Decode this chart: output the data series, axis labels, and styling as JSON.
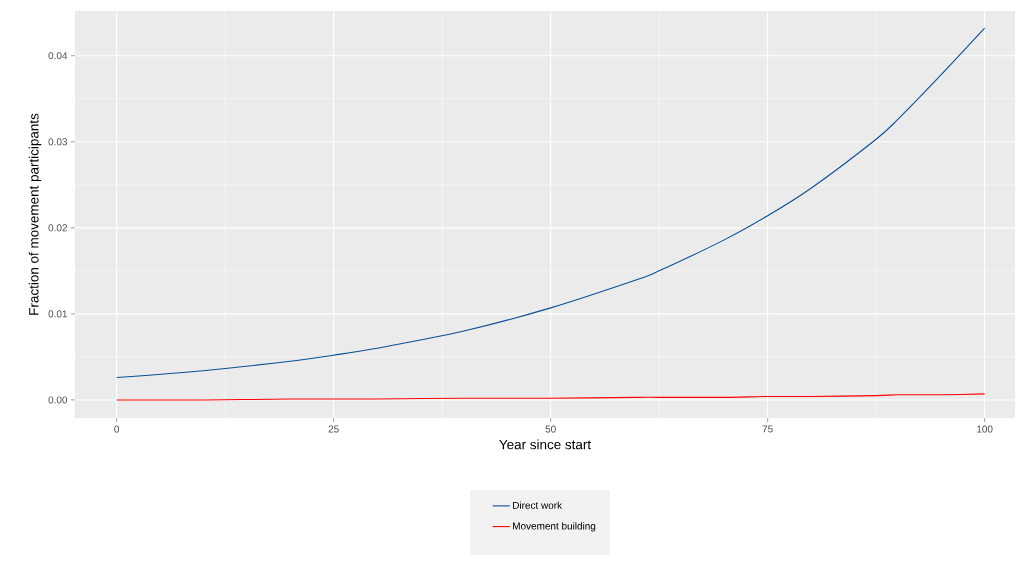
{
  "chart_data": {
    "type": "line",
    "xlabel": "Year since start",
    "ylabel": "Fraction of movement participants",
    "x": [
      0,
      10,
      20,
      25,
      30,
      40,
      50,
      60,
      62.5,
      70,
      75,
      80,
      87.5,
      90,
      95,
      100
    ],
    "series": [
      {
        "name": "Direct work",
        "color": "#0b4f93",
        "values": [
          0.0026,
          0.0034,
          0.0045,
          0.0052,
          0.006,
          0.008,
          0.0107,
          0.014,
          0.015,
          0.0186,
          0.0214,
          0.0246,
          0.0303,
          0.0326,
          0.0378,
          0.0432
        ]
      },
      {
        "name": "Movement building",
        "color": "#ff0000",
        "values": [
          0,
          0,
          0.0001,
          0.0001,
          0.0001,
          0.0002,
          0.0002,
          0.0003,
          0.0003,
          0.0003,
          0.0004,
          0.0004,
          0.0005,
          0.0006,
          0.0006,
          0.0007
        ]
      }
    ],
    "xlim": [
      -4.8,
      103.5
    ],
    "ylim": [
      -0.0021,
      0.0452
    ],
    "xticks": [
      0,
      25,
      50,
      75,
      100
    ],
    "yticks": [
      {
        "value": 0,
        "label": "0.00"
      },
      {
        "value": 0.01,
        "label": "0.01"
      },
      {
        "value": 0.02,
        "label": "0.02"
      },
      {
        "value": 0.03,
        "label": "0.03"
      },
      {
        "value": 0.04,
        "label": "0.04"
      }
    ],
    "grid": true,
    "legend": "bottom"
  }
}
